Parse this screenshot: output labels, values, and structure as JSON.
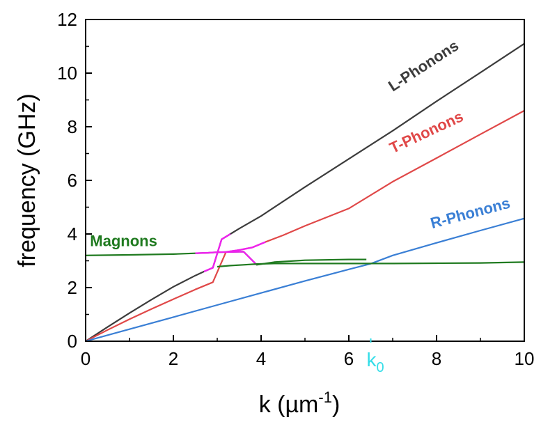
{
  "chart_data": {
    "type": "line",
    "xlabel": "k (µm",
    "xlabel_sup": "-1",
    "xlabel_close": ")",
    "ylabel": "frequency (GHz)",
    "xlim": [
      0,
      10
    ],
    "ylim": [
      0,
      12
    ],
    "x_ticks": [
      0,
      2,
      4,
      6,
      8,
      10
    ],
    "y_ticks": [
      0,
      2,
      4,
      6,
      8,
      10,
      12
    ],
    "grid": false,
    "legend": "none",
    "marker": {
      "label": "k",
      "sub": "0",
      "x": 6.5,
      "color": "#33dde8"
    },
    "series": [
      {
        "name": "L-Phonons",
        "color": "#3c3c3c",
        "x": [
          0,
          0.5,
          1,
          1.5,
          2,
          2.5,
          2.7,
          2.9,
          3.1,
          3.3,
          3.5,
          4,
          5,
          6,
          7,
          8,
          9,
          10
        ],
        "y": [
          0,
          0.53,
          1.05,
          1.55,
          2.03,
          2.45,
          2.6,
          2.74,
          3.8,
          4.0,
          4.2,
          4.67,
          5.75,
          6.8,
          7.85,
          8.95,
          10.02,
          11.1
        ],
        "hybrid_range": [
          2.6,
          3.4
        ]
      },
      {
        "name": "T-Phonons",
        "color": "#e04848",
        "x": [
          0,
          0.5,
          1,
          1.5,
          2,
          2.5,
          2.9,
          3.2,
          3.5,
          3.8,
          4.1,
          4.5,
          5,
          6,
          7,
          8,
          9,
          10
        ],
        "y": [
          0,
          0.42,
          0.82,
          1.2,
          1.57,
          1.93,
          2.2,
          3.33,
          3.4,
          3.5,
          3.7,
          3.95,
          4.3,
          4.95,
          5.95,
          6.83,
          7.72,
          8.6
        ],
        "hybrid_range": [
          3.0,
          4.2
        ]
      },
      {
        "name": "R-Phonons",
        "color": "#3a7fd5",
        "x": [
          0,
          1,
          2,
          3,
          4,
          5,
          6,
          6.5,
          7,
          8,
          9,
          10
        ],
        "y": [
          0,
          0.45,
          0.9,
          1.35,
          1.8,
          2.25,
          2.68,
          2.89,
          3.2,
          3.67,
          4.13,
          4.58
        ],
        "hybrid_range": [
          6.3,
          6.7
        ]
      },
      {
        "name": "Magnons",
        "color": "#1f7a1f",
        "x": [
          0,
          1,
          2,
          2.5,
          2.8,
          3.0,
          3.3,
          3.6,
          3.9,
          4.3,
          5,
          6,
          6.4
        ],
        "y": [
          3.2,
          3.22,
          3.25,
          3.28,
          3.3,
          3.32,
          3.33,
          3.34,
          2.85,
          2.95,
          3.02,
          3.05,
          3.05
        ],
        "hybrid_range": [
          2.5,
          4.2
        ]
      },
      {
        "name": "",
        "color": "#1f7a1f",
        "x": [
          3.0,
          3.3,
          3.6,
          3.9,
          4.3,
          5,
          6,
          6.6,
          7,
          8,
          9,
          10
        ],
        "y": [
          2.78,
          2.82,
          2.85,
          2.88,
          2.9,
          2.9,
          2.9,
          2.9,
          2.9,
          2.91,
          2.92,
          2.95
        ],
        "hybrid_range": [
          6.3,
          6.7
        ]
      }
    ],
    "labels": [
      {
        "text": "L-Phonons",
        "x": 7.0,
        "y": 9.3,
        "angle_deg": -33,
        "color": "#3c3c3c"
      },
      {
        "text": "T-Phonons",
        "x": 7.0,
        "y": 7.0,
        "angle_deg": -25,
        "color": "#e04848"
      },
      {
        "text": "R-Phonons",
        "x": 7.9,
        "y": 4.2,
        "angle_deg": -15,
        "color": "#3a7fd5"
      },
      {
        "text": "Magnons",
        "x": 0.1,
        "y": 3.55,
        "angle_deg": 0,
        "color": "#1f7a1f"
      }
    ],
    "hybrid_color": "#ee22ee"
  }
}
